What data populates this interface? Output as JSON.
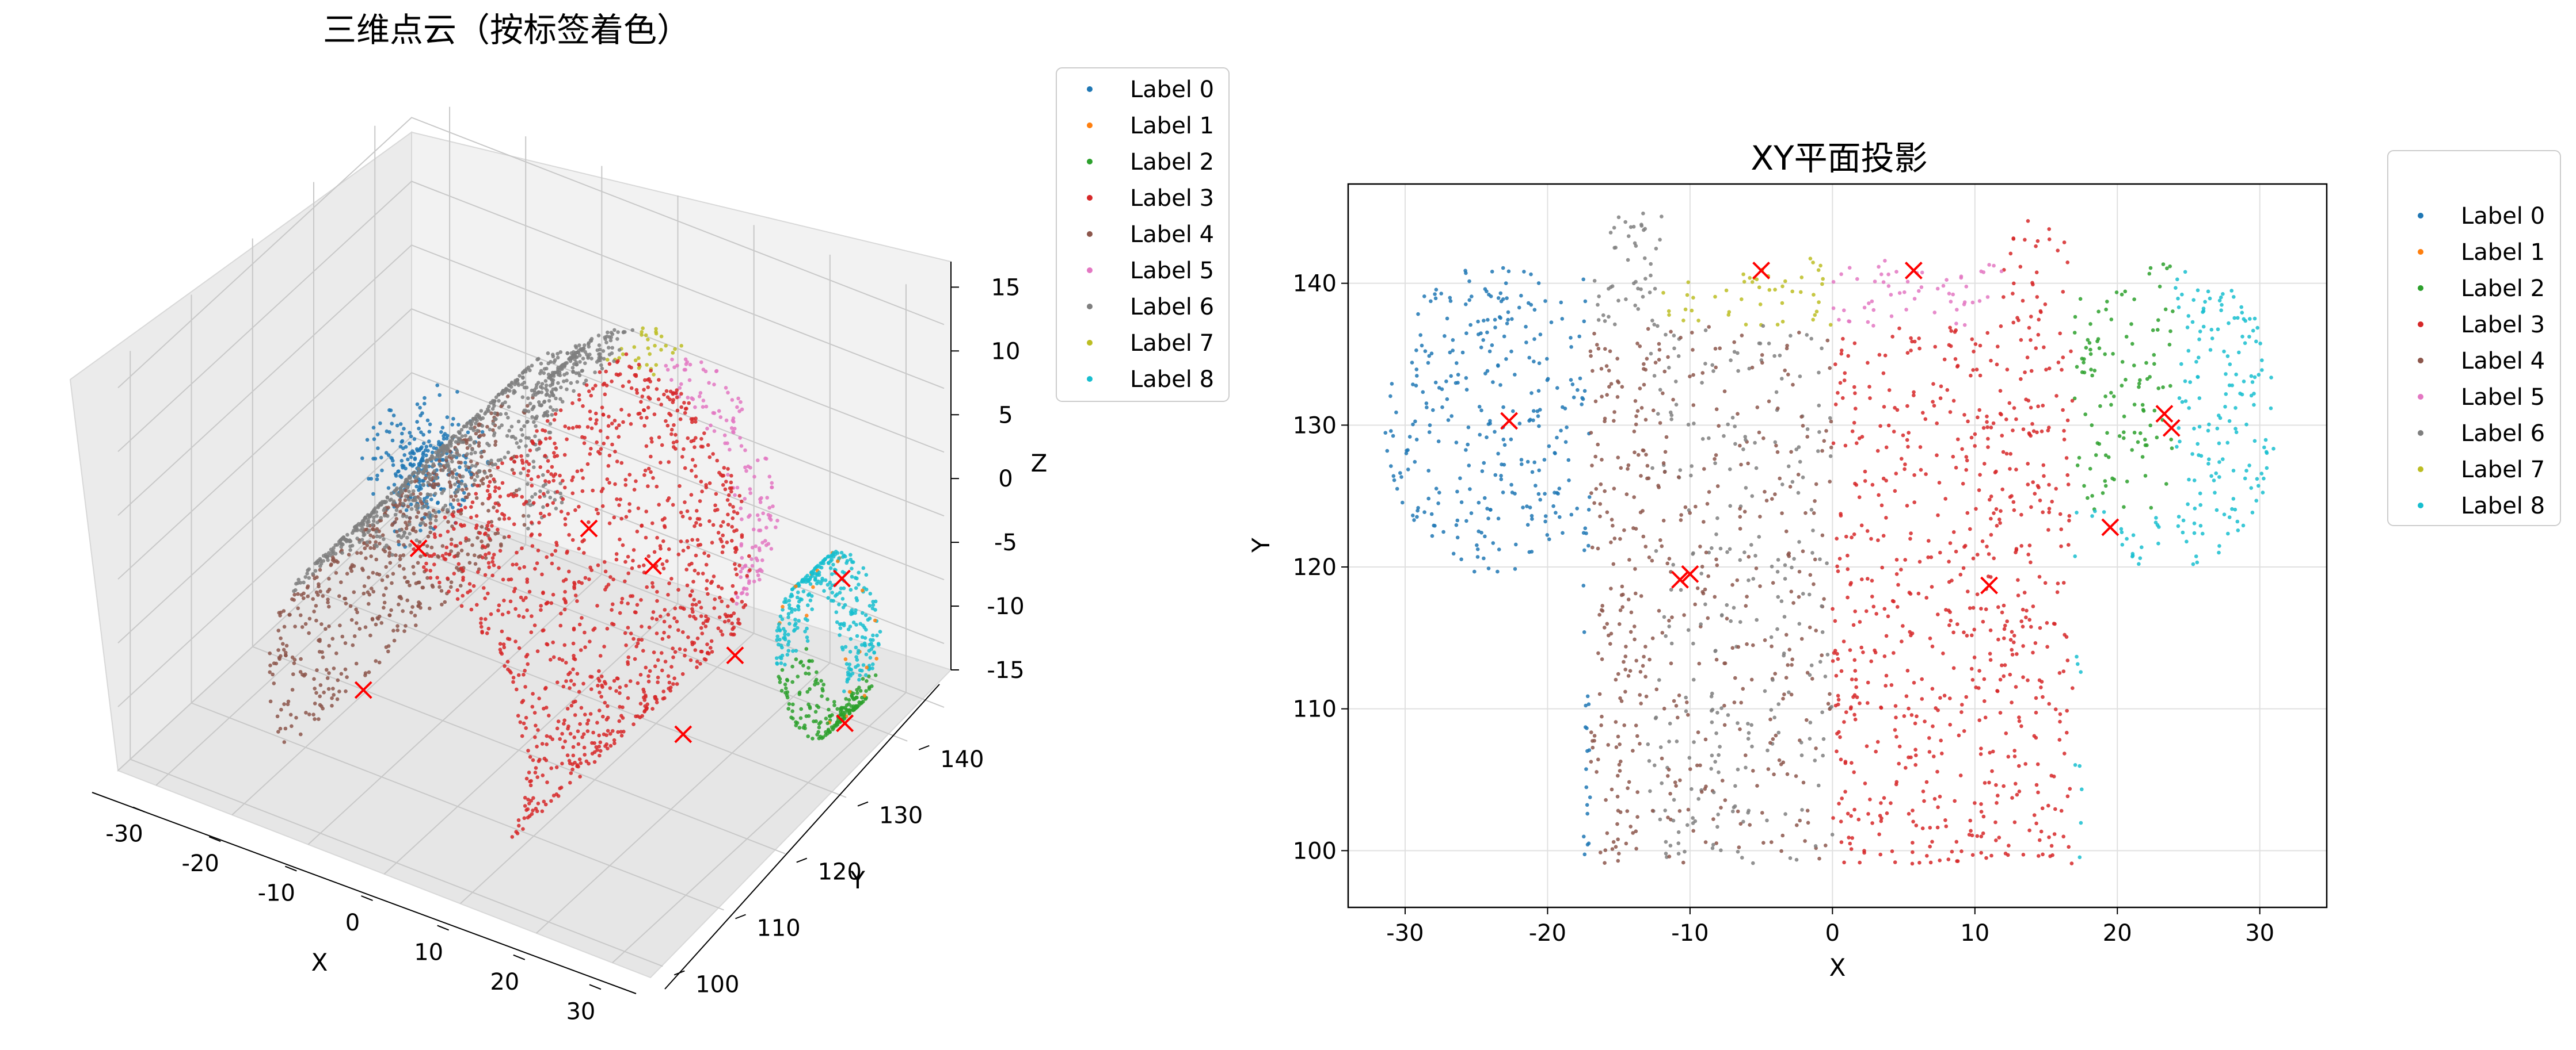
{
  "chart_data": [
    {
      "type": "scatter3d",
      "title": "三维点云（按标签着色）",
      "xlabel": "X",
      "ylabel": "Y",
      "zlabel": "Z",
      "xlim": [
        -35,
        35
      ],
      "ylim": [
        98,
        146
      ],
      "zlim": [
        -15,
        17
      ],
      "xticks": [
        -30,
        -20,
        -10,
        0,
        10,
        20,
        30
      ],
      "yticks": [
        100,
        110,
        120,
        130,
        140
      ],
      "zticks": [
        -15,
        -10,
        -5,
        0,
        5,
        10,
        15
      ],
      "legend_position": "upper-right-outside",
      "legend": [
        "Label 0",
        "Label 1",
        "Label 2",
        "Label 3",
        "Label 4",
        "Label 5",
        "Label 6",
        "Label 7",
        "Label 8"
      ],
      "centroids": [
        {
          "label": "Label 0",
          "x": -18,
          "y": 126,
          "z": -6
        },
        {
          "label": "Label 4",
          "x": -14,
          "y": 112,
          "z": -10
        },
        {
          "label": "Label 3",
          "x": 6,
          "y": 124,
          "z": 2
        },
        {
          "label": "Label 7",
          "x": 8,
          "y": 132,
          "z": -4
        },
        {
          "label": "Label 6",
          "x": 22,
          "y": 128,
          "z": -6
        },
        {
          "label": "Label 1",
          "x": 20,
          "y": 122,
          "z": -10
        },
        {
          "label": "Label 8",
          "x": 28,
          "y": 138,
          "z": -3
        },
        {
          "label": "Label 2",
          "x": 30,
          "y": 136,
          "z": -13
        }
      ]
    },
    {
      "type": "scatter",
      "title": "XY平面投影",
      "xlabel": "X",
      "ylabel": "Y",
      "xlim": [
        -34,
        34.7
      ],
      "ylim": [
        96,
        147
      ],
      "xticks": [
        -30,
        -20,
        -10,
        0,
        10,
        20,
        30
      ],
      "yticks": [
        100,
        110,
        120,
        130,
        140
      ],
      "grid": true,
      "legend_position": "upper-right-outside",
      "legend": [
        "Label 0",
        "Label 1",
        "Label 2",
        "Label 3",
        "Label 4",
        "Label 5",
        "Label 6",
        "Label 7",
        "Label 8"
      ],
      "centroids": [
        {
          "x": -22.7,
          "y": 130.3
        },
        {
          "x": -5.0,
          "y": 140.9
        },
        {
          "x": 5.7,
          "y": 140.9
        },
        {
          "x": -10.7,
          "y": 119.1
        },
        {
          "x": -10.0,
          "y": 119.5
        },
        {
          "x": 11.0,
          "y": 118.7
        },
        {
          "x": 19.5,
          "y": 122.8
        },
        {
          "x": 23.3,
          "y": 130.8
        },
        {
          "x": 23.8,
          "y": 129.8
        }
      ]
    }
  ],
  "colors": {
    "label0": "#1f77b4",
    "label1": "#ff7f0e",
    "label2": "#2ca02c",
    "label3": "#d62728",
    "label4": "#8c564b",
    "label5": "#e377c2",
    "label6": "#7f7f7f",
    "label7": "#bcbd22",
    "label8": "#17becf",
    "centroid": "#ff0000"
  }
}
